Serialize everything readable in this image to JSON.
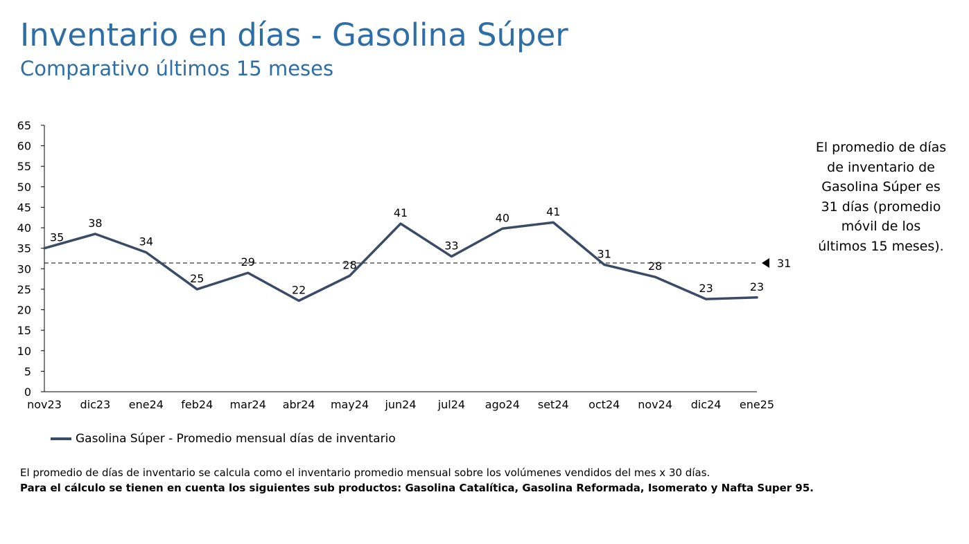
{
  "header": {
    "title": "Inventario en días - Gasolina Súper",
    "subtitle": "Comparativo últimos 15 meses"
  },
  "chart_data": {
    "type": "line",
    "categories": [
      "nov23",
      "dic23",
      "ene24",
      "feb24",
      "mar24",
      "abr24",
      "may24",
      "jun24",
      "jul24",
      "ago24",
      "set24",
      "oct24",
      "nov24",
      "dic24",
      "ene25"
    ],
    "series": [
      {
        "name": "Gasolina Súper - Promedio mensual días de inventario",
        "values": [
          35,
          38.5,
          34,
          25,
          29,
          22.2,
          28.3,
          41,
          33,
          39.8,
          41.3,
          31,
          28,
          22.6,
          23
        ],
        "labels": [
          "35",
          "38",
          "34",
          "25",
          "29",
          "22",
          "28",
          "41",
          "33",
          "40",
          "41",
          "31",
          "28",
          "23",
          "23"
        ],
        "color": "#3a4b66"
      }
    ],
    "reference_line": {
      "value": 31.4,
      "label": "31",
      "style": "dashed"
    },
    "ylim": [
      0,
      65
    ],
    "yticks": [
      0,
      5,
      10,
      15,
      20,
      25,
      30,
      35,
      40,
      45,
      50,
      55,
      60,
      65
    ],
    "xlabel": "",
    "ylabel": "",
    "grid": false,
    "legend_position": "bottom-left"
  },
  "side_note": {
    "text": "El promedio de días de inventario de Gasolina Súper es 31 días (promedio móvil de los últimos 15 meses)."
  },
  "footnotes": {
    "line1": "El promedio de días de inventario se calcula como el inventario promedio mensual sobre los volúmenes vendidos del mes x 30 días.",
    "line2": "Para el cálculo se tienen en cuenta los siguientes sub productos: Gasolina Catalítica, Gasolina Reformada, Isomerato y Nafta Super 95."
  }
}
